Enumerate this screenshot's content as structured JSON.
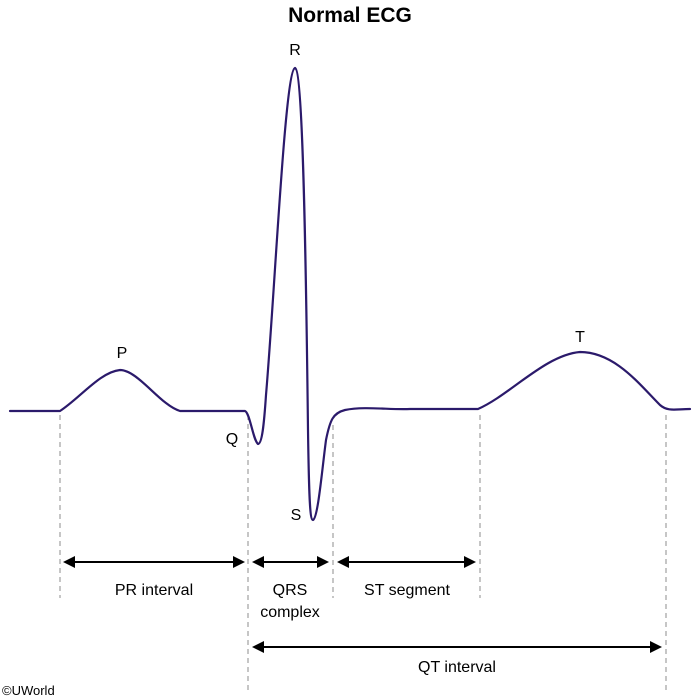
{
  "title": "Normal ECG",
  "wave_labels": {
    "p": "P",
    "q": "Q",
    "r": "R",
    "s": "S",
    "t": "T"
  },
  "intervals": {
    "pr": "PR interval",
    "qrs_line1": "QRS",
    "qrs_line2": "complex",
    "st": "ST segment",
    "qt": "QT interval"
  },
  "copyright": "©UWorld",
  "colors": {
    "trace": "#2b1a6b",
    "guide": "#8c8c8c",
    "arrow": "#000000"
  }
}
